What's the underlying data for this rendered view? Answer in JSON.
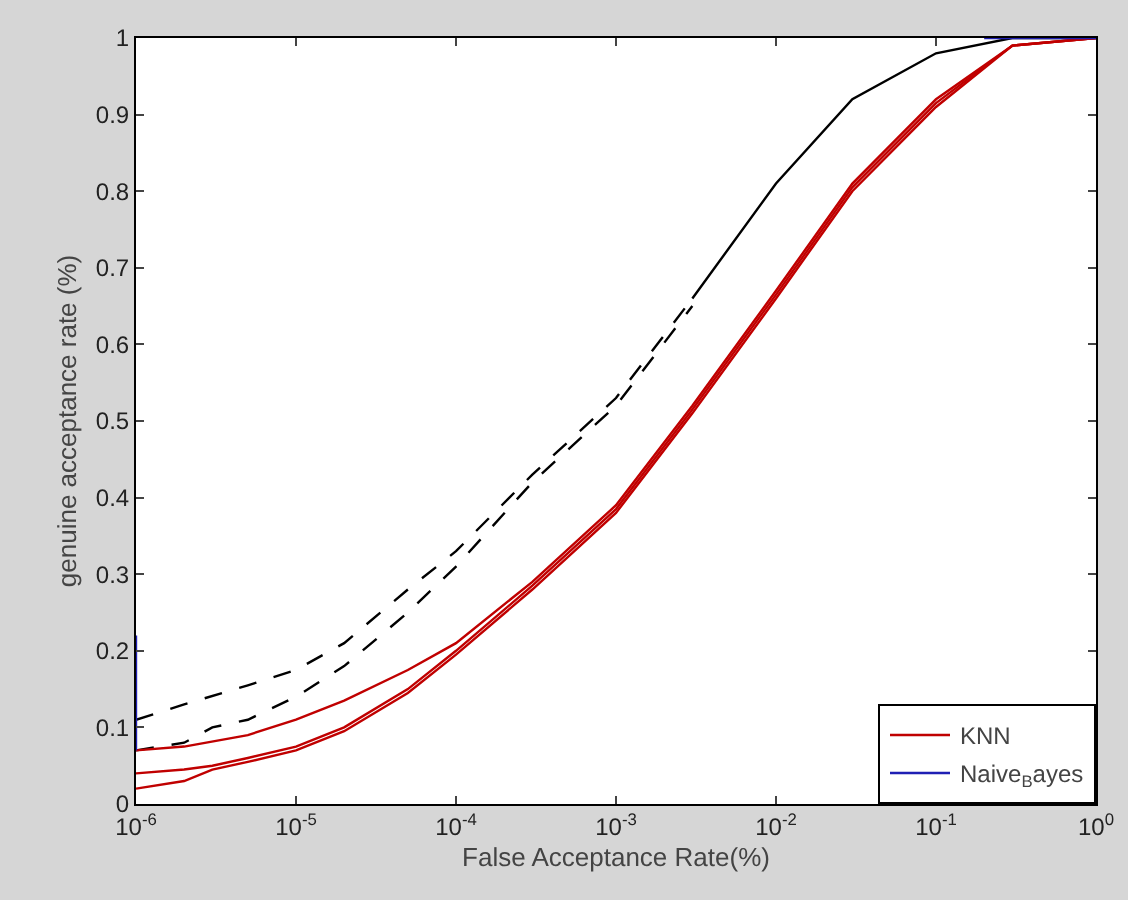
{
  "chart_data": {
    "type": "line",
    "xlabel": "False Acceptance Rate(%)",
    "ylabel": "genuine acceptance rate (%)",
    "log": "x",
    "grid": false,
    "legend": "bottom right",
    "xlim": [
      1e-06,
      1
    ],
    "xticks": [
      {
        "value": 1e-06,
        "label": "10$^{-6}$"
      },
      {
        "value": 1e-05,
        "label": "10$^{-5}$"
      },
      {
        "value": 0.0001,
        "label": "10$^{-4}$"
      },
      {
        "value": 0.001,
        "label": "10$^{-3}$"
      },
      {
        "value": 0.01,
        "label": "10$^{-2}$"
      },
      {
        "value": 0.1,
        "label": "10$^{-1}$"
      },
      {
        "value": 1,
        "label": "10$^{0}$"
      }
    ],
    "ylim": [
      0,
      1
    ],
    "yticks": [
      0,
      0.1,
      0.2,
      0.3,
      0.4,
      0.5,
      0.6,
      0.7,
      0.8,
      0.9,
      1
    ],
    "series": [
      {
        "color": "#000000",
        "line_style": "dashed",
        "x": [
          1e-06,
          2e-06,
          5e-06,
          1e-05,
          2e-05,
          5e-05,
          0.0001,
          0.0003,
          0.001,
          0.003
        ],
        "values": [
          0.11,
          0.13,
          0.155,
          0.175,
          0.21,
          0.28,
          0.33,
          0.43,
          0.53,
          0.66
        ]
      },
      {
        "color": "#000000",
        "line_style": "dashed",
        "x": [
          1e-06,
          2e-06,
          3e-06,
          5e-06,
          1e-05,
          2e-05,
          5e-05,
          0.0001,
          0.0003,
          0.001,
          0.003
        ],
        "values": [
          0.07,
          0.08,
          0.1,
          0.11,
          0.14,
          0.18,
          0.25,
          0.31,
          0.42,
          0.52,
          0.65
        ]
      },
      {
        "color": "#000000",
        "line_style": "solid",
        "x": [
          0.003,
          0.01,
          0.03,
          0.1,
          0.3,
          1
        ],
        "values": [
          0.66,
          0.81,
          0.92,
          0.98,
          1,
          1
        ]
      },
      {
        "name": "KNN",
        "color": "#c00000",
        "line_style": "solid",
        "x": [
          1e-06,
          2e-06,
          5e-06,
          1e-05,
          2e-05,
          5e-05,
          0.0001,
          0.0003,
          0.001,
          0.003,
          0.01,
          0.03,
          0.1,
          0.3,
          1
        ],
        "values": [
          0.07,
          0.075,
          0.09,
          0.11,
          0.135,
          0.175,
          0.21,
          0.29,
          0.39,
          0.52,
          0.67,
          0.81,
          0.92,
          0.99,
          1
        ]
      },
      {
        "color": "#c00000",
        "line_style": "solid",
        "x": [
          1e-06,
          2e-06,
          3e-06,
          5e-06,
          1e-05,
          2e-05,
          5e-05,
          0.0001,
          0.0003,
          0.001,
          0.003,
          0.01,
          0.03,
          0.1,
          0.3,
          1
        ],
        "values": [
          0.04,
          0.045,
          0.05,
          0.06,
          0.075,
          0.1,
          0.15,
          0.2,
          0.285,
          0.385,
          0.515,
          0.665,
          0.805,
          0.915,
          0.99,
          1
        ]
      },
      {
        "color": "#c00000",
        "line_style": "solid",
        "x": [
          1e-06,
          2e-06,
          3e-06,
          5e-06,
          1e-05,
          2e-05,
          5e-05,
          0.0001,
          0.0003,
          0.001,
          0.003,
          0.01,
          0.03,
          0.1,
          0.3,
          1
        ],
        "values": [
          0.02,
          0.03,
          0.045,
          0.055,
          0.07,
          0.095,
          0.145,
          0.195,
          0.28,
          0.38,
          0.51,
          0.66,
          0.8,
          0.91,
          0.99,
          1
        ]
      },
      {
        "name": "Naive$_{B}$ayes",
        "color": "#1f1fb4",
        "line_style": "solid",
        "x": [
          1e-06,
          1e-06,
          0.001,
          0.2,
          1
        ],
        "values": [
          0.07,
          0.22,
          null,
          1,
          1
        ]
      }
    ]
  }
}
